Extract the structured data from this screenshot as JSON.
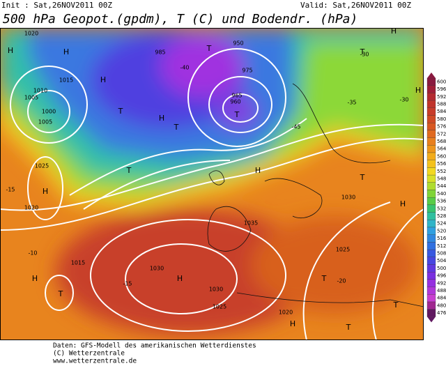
{
  "header": {
    "init": "Init : Sat,26NOV2011 00Z",
    "valid": "Valid: Sat,26NOV2011 00Z",
    "title": "500 hPa Geopot.(gpdm), T (C) und Bodendr. (hPa)"
  },
  "footer": [
    "Daten: GFS-Modell des amerikanischen Wetterdienstes",
    "(C) Wetterzentrale",
    "www.wetterzentrale.de"
  ],
  "map_labels": [
    "H",
    "H",
    "H",
    "T",
    "T",
    "T",
    "T",
    "H",
    "H",
    "T",
    "H",
    "T",
    "H",
    "H",
    "T",
    "H",
    "T",
    "H",
    "T",
    "H",
    "T",
    "H",
    "T",
    "1020",
    "1015",
    "1010",
    "1005",
    "1000",
    "1005",
    "1025",
    "1020",
    "1015",
    "1030",
    "1030",
    "1025",
    "1020",
    "1025",
    "1030",
    "1035",
    "-15",
    "-10",
    "-15",
    "-20",
    "-30",
    "-35",
    "-40",
    "-45",
    "-30",
    "950",
    "960",
    "965",
    "975",
    "985"
  ],
  "colorbar": {
    "values": [
      600,
      596,
      592,
      588,
      584,
      580,
      576,
      572,
      568,
      564,
      560,
      556,
      552,
      548,
      544,
      540,
      536,
      532,
      528,
      524,
      520,
      516,
      512,
      508,
      504,
      500,
      496,
      492,
      488,
      484,
      480,
      476
    ],
    "colors": [
      "#8a1a40",
      "#a01e38",
      "#b42a30",
      "#c0342c",
      "#c83c2a",
      "#d04a26",
      "#d85822",
      "#e06a20",
      "#e8801e",
      "#ee961c",
      "#f2ac1c",
      "#f4c21c",
      "#f2d820",
      "#d8e028",
      "#b0dc30",
      "#80d438",
      "#58cc48",
      "#38c470",
      "#30c0a0",
      "#30b4c8",
      "#30a0e0",
      "#3088e0",
      "#3070e0",
      "#3858e0",
      "#4846e0",
      "#6038e0",
      "#7a30e0",
      "#9630e0",
      "#b038d8",
      "#c840d0",
      "#a02890",
      "#601860"
    ]
  }
}
